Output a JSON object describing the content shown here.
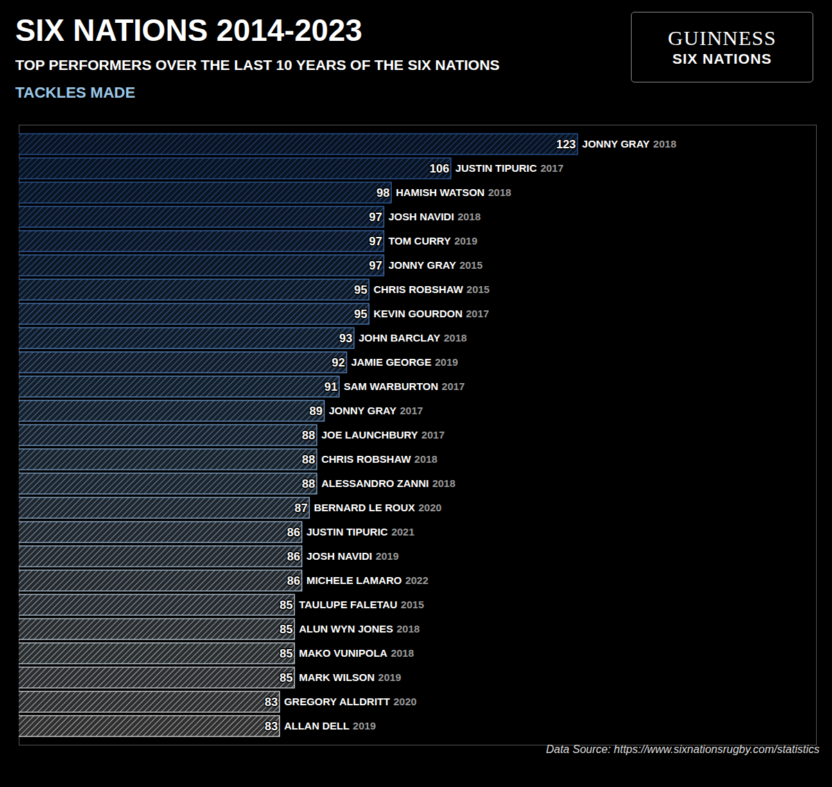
{
  "chart_data": {
    "type": "bar",
    "title": "SIX NATIONS 2014-2023",
    "subtitle": "TOP PERFORMERS OVER THE LAST 10 YEARS OF THE SIX NATIONS",
    "xlabel": "TACKLES MADE",
    "caption": "Data Source: https://www.sixnationsrugby.com/statistics",
    "logo": {
      "text": "GUINNESS",
      "subtext": "SIX NATIONS"
    },
    "orientation": "horizontal",
    "categories": [
      "JONNY GRAY",
      "JUSTIN TIPURIC",
      "HAMISH WATSON",
      "JOSH NAVIDI",
      "TOM CURRY",
      "JONNY GRAY",
      "CHRIS ROBSHAW",
      "KEVIN GOURDON",
      "JOHN BARCLAY",
      "JAMIE GEORGE",
      "SAM WARBURTON",
      "JONNY GRAY",
      "JOE LAUNCHBURY",
      "CHRIS ROBSHAW",
      "ALESSANDRO ZANNI",
      "BERNARD LE ROUX",
      "JUSTIN TIPURIC",
      "JOSH NAVIDI",
      "MICHELE LAMARO",
      "TAULUPE FALETAU",
      "ALUN WYN JONES",
      "MAKO VUNIPOLA",
      "MARK WILSON",
      "GREGORY ALLDRITT",
      "ALLAN DELL"
    ],
    "years": [
      2018,
      2017,
      2018,
      2018,
      2019,
      2015,
      2015,
      2017,
      2018,
      2019,
      2017,
      2017,
      2017,
      2018,
      2018,
      2020,
      2021,
      2019,
      2022,
      2015,
      2018,
      2018,
      2019,
      2020,
      2019
    ],
    "values": [
      123,
      106,
      98,
      97,
      97,
      97,
      95,
      95,
      93,
      92,
      91,
      89,
      88,
      88,
      88,
      87,
      86,
      86,
      86,
      85,
      85,
      85,
      85,
      83,
      83
    ],
    "colors": [
      "#2c5aa0",
      "#2f5ea4",
      "#3363a9",
      "#3767ad",
      "#3c6cb2",
      "#4071b6",
      "#4a7cbf",
      "#4f81c3",
      "#5587c6",
      "#5d8dca",
      "#6596ce",
      "#6f9ed2",
      "#7aa6d6",
      "#84add9",
      "#8eb3db",
      "#98b9dd",
      "#a4c2df",
      "#aec8e1",
      "#b9cfe3",
      "#c2d4e5",
      "#cbdae7",
      "#d3dfe8",
      "#dbe3e9",
      "#e3e7ea",
      "#ebebeb"
    ],
    "xlim": [
      48,
      155
    ],
    "data_labels": true,
    "tick_labels": false,
    "grid": false
  }
}
